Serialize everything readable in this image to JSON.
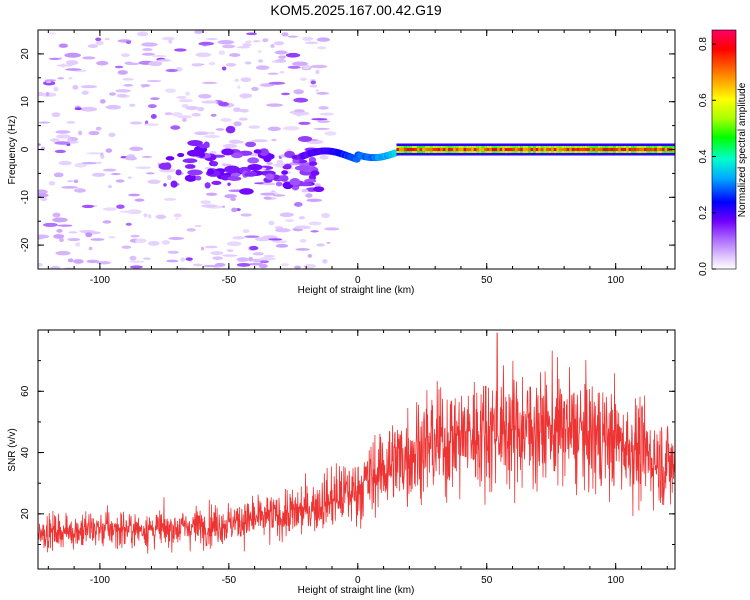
{
  "title": "KOM5.2025.167.00.42.G19",
  "colors": {
    "snr_line": "#ee3333",
    "axis": "#000000",
    "colormap": [
      "#ffffff",
      "#e0c8ff",
      "#b070ff",
      "#7000ff",
      "#0000ff",
      "#00aaff",
      "#00ffcc",
      "#00ff00",
      "#aaff00",
      "#ffff00",
      "#ff8800",
      "#ff0000",
      "#ff0066"
    ]
  },
  "chart_data": [
    {
      "type": "heatmap",
      "title": "KOM5.2025.167.00.42.G19",
      "xlabel": "Height of straight line (km)",
      "ylabel": "Frequency (Hz)",
      "xlim": [
        -124,
        123
      ],
      "ylim": [
        -25,
        25
      ],
      "xticks": [
        -100,
        -50,
        0,
        50,
        100
      ],
      "yticks": [
        -20,
        -10,
        0,
        10,
        20
      ],
      "colorbar": {
        "label": "Normalized spectral amplitude",
        "range": [
          0.0,
          0.85
        ],
        "ticks": [
          "0.0",
          "0.2",
          "0.4",
          "0.6",
          "0.8"
        ]
      },
      "features": {
        "noise_region_x": [
          -124,
          -20
        ],
        "transition_region_x": [
          -20,
          15
        ],
        "steady_band_x": [
          15,
          123
        ],
        "steady_band_frequency_hz": 0,
        "steady_band_amplitude": 0.8
      }
    },
    {
      "type": "line",
      "xlabel": "Height of straight line (km)",
      "ylabel": "SNR (v/v)",
      "xlim": [
        -124,
        123
      ],
      "ylim": [
        2,
        80
      ],
      "xticks": [
        -100,
        -50,
        0,
        50,
        100
      ],
      "yticks": [
        20,
        40,
        60
      ],
      "trend_x": [
        -124,
        -100,
        -75,
        -50,
        -25,
        0,
        10,
        25,
        50,
        75,
        100,
        123
      ],
      "trend_y": [
        14,
        15,
        15,
        17,
        20,
        28,
        35,
        42,
        47,
        48,
        44,
        35
      ],
      "peak_x": 54,
      "peak_y": 79
    }
  ]
}
